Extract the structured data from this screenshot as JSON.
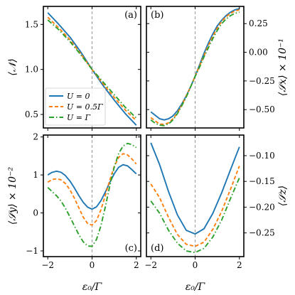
{
  "chart_data": [
    {
      "type": "line",
      "panel_label": "(a)",
      "ylabel": "⟨𝒩⟩",
      "xlim": [
        -2.2,
        2.2
      ],
      "ylim": [
        0.35,
        1.7
      ],
      "yticks": [
        0.5,
        1.0,
        1.5
      ],
      "ytick_labels": [
        "0.5",
        "1.0",
        "1.5"
      ],
      "yaxis_side": "left",
      "x": [
        -2,
        -1.5,
        -1,
        -0.5,
        0,
        0.5,
        1,
        1.5,
        2
      ],
      "series": [
        {
          "name": "U = 0",
          "values": [
            1.63,
            1.5,
            1.36,
            1.19,
            1.0,
            0.82,
            0.66,
            0.51,
            0.38
          ]
        },
        {
          "name": "U = 0.5Γ",
          "values": [
            1.58,
            1.46,
            1.33,
            1.17,
            1.0,
            0.84,
            0.69,
            0.55,
            0.43
          ]
        },
        {
          "name": "U = Γ",
          "values": [
            1.55,
            1.44,
            1.31,
            1.16,
            1.0,
            0.86,
            0.72,
            0.58,
            0.46
          ]
        }
      ]
    },
    {
      "type": "line",
      "panel_label": "(b)",
      "ylabel": "⟨𝒮x⟩ × 10⁻¹",
      "xlim": [
        -2.2,
        2.2
      ],
      "ylim": [
        -0.66,
        0.4
      ],
      "yticks": [
        -0.5,
        -0.25,
        0.0,
        0.25
      ],
      "ytick_labels": [
        "−0.50",
        "−0.25",
        "0.00",
        "0.25"
      ],
      "yaxis_side": "right",
      "x": [
        -2,
        -1.8,
        -1.6,
        -1.4,
        -1.2,
        -1,
        -0.8,
        -0.6,
        -0.4,
        -0.2,
        0,
        0.2,
        0.4,
        0.6,
        0.8,
        1,
        1.2,
        1.4,
        1.6,
        1.8,
        2
      ],
      "series": [
        {
          "name": "U = 0",
          "values": [
            -0.52,
            -0.55,
            -0.58,
            -0.59,
            -0.58,
            -0.555,
            -0.51,
            -0.45,
            -0.38,
            -0.3,
            -0.21,
            -0.11,
            -0.01,
            0.08,
            0.16,
            0.23,
            0.28,
            0.32,
            0.35,
            0.37,
            0.38
          ]
        },
        {
          "name": "U = 0.5Γ",
          "values": [
            -0.57,
            -0.6,
            -0.625,
            -0.63,
            -0.615,
            -0.58,
            -0.53,
            -0.46,
            -0.38,
            -0.3,
            -0.21,
            -0.12,
            -0.03,
            0.06,
            0.14,
            0.21,
            0.27,
            0.31,
            0.34,
            0.36,
            0.37
          ]
        },
        {
          "name": "U = Γ",
          "values": [
            -0.59,
            -0.62,
            -0.635,
            -0.64,
            -0.625,
            -0.59,
            -0.535,
            -0.465,
            -0.39,
            -0.3,
            -0.21,
            -0.13,
            -0.04,
            0.04,
            0.12,
            0.19,
            0.25,
            0.29,
            0.32,
            0.34,
            0.35
          ]
        }
      ]
    },
    {
      "type": "line",
      "panel_label": "(c)",
      "ylabel": "⟨𝒮y⟩ × 10⁻²",
      "xlabel": "ε₀/Γ",
      "xlim": [
        -2.2,
        2.2
      ],
      "ylim": [
        -1.15,
        2.05
      ],
      "yticks": [
        -1,
        0,
        1,
        2
      ],
      "ytick_labels": [
        "−1",
        "0",
        "1",
        "2"
      ],
      "xticks": [
        -2,
        0,
        2
      ],
      "xtick_labels": [
        "−2",
        "0",
        "2"
      ],
      "yaxis_side": "left",
      "x": [
        -2,
        -1.8,
        -1.6,
        -1.4,
        -1.2,
        -1,
        -0.8,
        -0.6,
        -0.4,
        -0.2,
        0,
        0.2,
        0.4,
        0.6,
        0.8,
        1,
        1.2,
        1.4,
        1.6,
        1.8,
        2
      ],
      "series": [
        {
          "name": "U = 0",
          "values": [
            1.0,
            1.07,
            1.1,
            1.07,
            0.98,
            0.84,
            0.66,
            0.46,
            0.28,
            0.15,
            0.1,
            0.16,
            0.32,
            0.55,
            0.8,
            1.03,
            1.2,
            1.27,
            1.24,
            1.14,
            1.03
          ]
        },
        {
          "name": "U = 0.5Γ",
          "values": [
            0.81,
            0.88,
            0.9,
            0.87,
            0.77,
            0.61,
            0.39,
            0.14,
            -0.11,
            -0.28,
            -0.32,
            -0.2,
            0.08,
            0.46,
            0.86,
            1.22,
            1.46,
            1.56,
            1.53,
            1.42,
            1.29
          ]
        },
        {
          "name": "U = Γ",
          "values": [
            0.67,
            0.56,
            0.45,
            0.31,
            0.12,
            -0.1,
            -0.34,
            -0.57,
            -0.76,
            -0.87,
            -0.88,
            -0.7,
            -0.34,
            0.16,
            0.71,
            1.2,
            1.56,
            1.76,
            1.83,
            1.8,
            1.72
          ]
        }
      ]
    },
    {
      "type": "line",
      "panel_label": "(d)",
      "ylabel": "⟨𝒮z⟩",
      "xlabel": "ε₀/Γ",
      "xlim": [
        -2.2,
        2.2
      ],
      "ylim": [
        -0.296,
        -0.06
      ],
      "yticks": [
        -0.25,
        -0.2,
        -0.15,
        -0.1
      ],
      "ytick_labels": [
        "−0.25",
        "−0.20",
        "−0.15",
        "−0.10"
      ],
      "xticks": [
        -2,
        0,
        2
      ],
      "xtick_labels": [
        "−2",
        "0",
        "2"
      ],
      "yaxis_side": "right",
      "x": [
        -2,
        -1.6,
        -1.2,
        -0.8,
        -0.4,
        0,
        0.4,
        0.8,
        1.2,
        1.6,
        2
      ],
      "series": [
        {
          "name": "U = 0",
          "values": [
            -0.075,
            -0.118,
            -0.17,
            -0.215,
            -0.245,
            -0.252,
            -0.242,
            -0.212,
            -0.172,
            -0.127,
            -0.083
          ]
        },
        {
          "name": "U = 0.5Γ",
          "values": [
            -0.155,
            -0.182,
            -0.22,
            -0.253,
            -0.272,
            -0.276,
            -0.268,
            -0.243,
            -0.208,
            -0.165,
            -0.12
          ]
        },
        {
          "name": "U = Γ",
          "values": [
            -0.188,
            -0.212,
            -0.245,
            -0.27,
            -0.285,
            -0.288,
            -0.28,
            -0.258,
            -0.225,
            -0.183,
            -0.143
          ]
        }
      ]
    }
  ],
  "legend": {
    "placement": "lower-left of panel (a)",
    "entries": [
      {
        "label": "U = 0",
        "color": "#1f77b4",
        "dash": "solid"
      },
      {
        "label": "U = 0.5Γ",
        "color": "#ff7f0e",
        "dash": "dashed"
      },
      {
        "label": "U = Γ",
        "color": "#2ca02c",
        "dash": "dashdot"
      }
    ]
  },
  "styles": {
    "series_colors": [
      "#1f77b4",
      "#ff7f0e",
      "#2ca02c"
    ],
    "zero_line_color": "#999999"
  }
}
